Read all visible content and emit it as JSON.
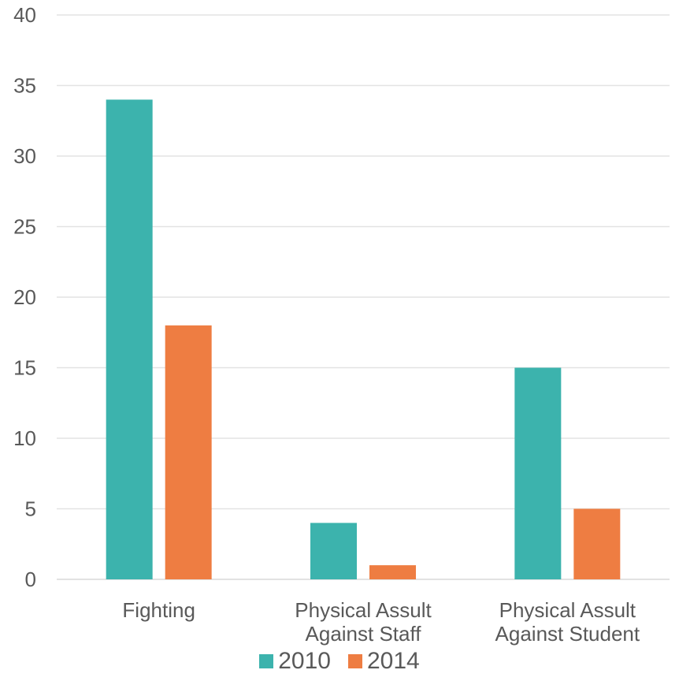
{
  "chart_data": {
    "type": "bar",
    "categories": [
      [
        "Fighting"
      ],
      [
        "Physical Assult",
        "Against Staff"
      ],
      [
        "Physical Assult",
        "Against Student"
      ]
    ],
    "series": [
      {
        "name": "2010",
        "values": [
          34,
          4,
          15
        ],
        "color": "#3CB3AD"
      },
      {
        "name": "2014",
        "values": [
          18,
          1,
          5
        ],
        "color": "#EE7D42"
      }
    ],
    "ylim": [
      0,
      40
    ],
    "yticks": [
      0,
      5,
      10,
      15,
      20,
      25,
      30,
      35,
      40
    ],
    "grid": true,
    "legend_position": "bottom",
    "title": "",
    "xlabel": "",
    "ylabel": ""
  }
}
